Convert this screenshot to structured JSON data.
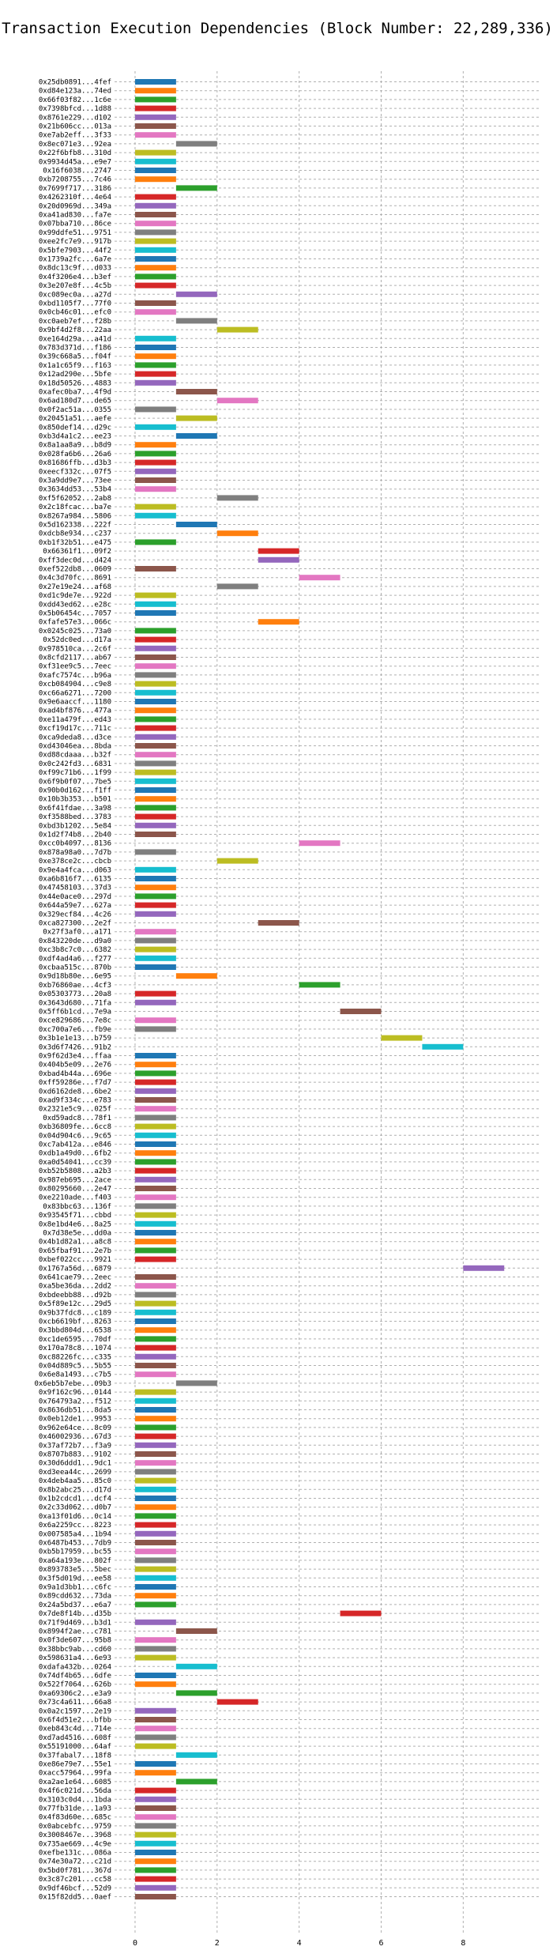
{
  "chart_data": {
    "type": "bar",
    "orientation": "horizontal",
    "title": "Transaction Execution Dependencies (Block Number: 22,289,336)",
    "xlabel": "",
    "ylabel": "",
    "xlim": [
      -0.5,
      9.9
    ],
    "xticks": [
      0,
      2,
      4,
      6,
      8
    ],
    "grid": true,
    "palette": [
      "#1f77b4",
      "#ff7f0e",
      "#2ca02c",
      "#d62728",
      "#9467bd",
      "#8c564b",
      "#e377c2",
      "#7f7f7f",
      "#bcbd22",
      "#17becf"
    ],
    "transactions": [
      {
        "label": "0x25db0891...4fef",
        "start": 0,
        "end": 1
      },
      {
        "label": "0xd84e123a...74ed",
        "start": 0,
        "end": 1
      },
      {
        "label": "0x66f03f82...1c6e",
        "start": 0,
        "end": 1
      },
      {
        "label": "0x7398bfcd...1d88",
        "start": 0,
        "end": 1
      },
      {
        "label": "0x8761e229...d102",
        "start": 0,
        "end": 1
      },
      {
        "label": "0x21b606cc...013a",
        "start": 0,
        "end": 1
      },
      {
        "label": "0xe7ab2eff...3f33",
        "start": 0,
        "end": 1
      },
      {
        "label": "0x8ec071e3...92ea",
        "start": 1,
        "end": 2
      },
      {
        "label": "0x22f6bfb8...310d",
        "start": 0,
        "end": 1
      },
      {
        "label": "0x9934d45a...e9e7",
        "start": 0,
        "end": 1
      },
      {
        "label": "0x16f6038...2747",
        "start": 0,
        "end": 1
      },
      {
        "label": "0xb7208755...7c46",
        "start": 0,
        "end": 1
      },
      {
        "label": "0x7699f717...3186",
        "start": 1,
        "end": 2
      },
      {
        "label": "0x4262310f...4e64",
        "start": 0,
        "end": 1
      },
      {
        "label": "0x20d0969d...349a",
        "start": 0,
        "end": 1
      },
      {
        "label": "0xa41ad830...fa7e",
        "start": 0,
        "end": 1
      },
      {
        "label": "0x07bba710...86ce",
        "start": 0,
        "end": 1
      },
      {
        "label": "0x99ddfe51...9751",
        "start": 0,
        "end": 1
      },
      {
        "label": "0xee2fc7e9...917b",
        "start": 0,
        "end": 1
      },
      {
        "label": "0x5bfe7903...44f2",
        "start": 0,
        "end": 1
      },
      {
        "label": "0x1739a2fc...6a7e",
        "start": 0,
        "end": 1
      },
      {
        "label": "0x8dc13c9f...d033",
        "start": 0,
        "end": 1
      },
      {
        "label": "0x4f3206e4...b3ef",
        "start": 0,
        "end": 1
      },
      {
        "label": "0x3e207e8f...4c5b",
        "start": 0,
        "end": 1
      },
      {
        "label": "0xc089ec0a...a27d",
        "start": 1,
        "end": 2
      },
      {
        "label": "0xbd1105f7...77f0",
        "start": 0,
        "end": 1
      },
      {
        "label": "0x0cb46c01...efc0",
        "start": 0,
        "end": 1
      },
      {
        "label": "0xc0aeb7ef...f28b",
        "start": 1,
        "end": 2
      },
      {
        "label": "0x9bf4d2f8...22aa",
        "start": 2,
        "end": 3
      },
      {
        "label": "0xe164d29a...a41d",
        "start": 0,
        "end": 1
      },
      {
        "label": "0x783d371d...f186",
        "start": 0,
        "end": 1
      },
      {
        "label": "0x39c668a5...f04f",
        "start": 0,
        "end": 1
      },
      {
        "label": "0x1a1c65f9...f163",
        "start": 0,
        "end": 1
      },
      {
        "label": "0x12ad290e...5bfe",
        "start": 0,
        "end": 1
      },
      {
        "label": "0x18d50526...4883",
        "start": 0,
        "end": 1
      },
      {
        "label": "0xafec0ba7...4f9d",
        "start": 1,
        "end": 2
      },
      {
        "label": "0x6ad180d7...de65",
        "start": 2,
        "end": 3
      },
      {
        "label": "0x0f2ac51a...0355",
        "start": 0,
        "end": 1
      },
      {
        "label": "0x20451a51...aefe",
        "start": 1,
        "end": 2
      },
      {
        "label": "0x850def14...d29c",
        "start": 0,
        "end": 1
      },
      {
        "label": "0xb3d4a1c2...ee23",
        "start": 1,
        "end": 2
      },
      {
        "label": "0x8a1aa8a9...b8d9",
        "start": 0,
        "end": 1
      },
      {
        "label": "0x028fa6b6...26a6",
        "start": 0,
        "end": 1
      },
      {
        "label": "0x81686ffb...d3b3",
        "start": 0,
        "end": 1
      },
      {
        "label": "0xeecf332c...07f5",
        "start": 0,
        "end": 1
      },
      {
        "label": "0x3a9dd9e7...73ee",
        "start": 0,
        "end": 1
      },
      {
        "label": "0x3634dd53...53b4",
        "start": 0,
        "end": 1
      },
      {
        "label": "0xf5f62052...2ab8",
        "start": 2,
        "end": 3
      },
      {
        "label": "0x2c18fcac...ba7e",
        "start": 0,
        "end": 1
      },
      {
        "label": "0x8267a984...5806",
        "start": 0,
        "end": 1
      },
      {
        "label": "0x5d162338...222f",
        "start": 1,
        "end": 2
      },
      {
        "label": "0xdcb8e934...c237",
        "start": 2,
        "end": 3
      },
      {
        "label": "0xb1f32b51...e475",
        "start": 0,
        "end": 1
      },
      {
        "label": "0x66361f1...09f2",
        "start": 3,
        "end": 4
      },
      {
        "label": "0xff3dec0d...d424",
        "start": 3,
        "end": 4
      },
      {
        "label": "0xef522db8...0609",
        "start": 0,
        "end": 1
      },
      {
        "label": "0x4c3d70fc...8691",
        "start": 4,
        "end": 5
      },
      {
        "label": "0x27e19e24...af68",
        "start": 2,
        "end": 3
      },
      {
        "label": "0xd1c9de7e...922d",
        "start": 0,
        "end": 1
      },
      {
        "label": "0xdd43ed62...e28c",
        "start": 0,
        "end": 1
      },
      {
        "label": "0x5b06454c...7057",
        "start": 0,
        "end": 1
      },
      {
        "label": "0xfafe57e3...066c",
        "start": 3,
        "end": 4
      },
      {
        "label": "0x0245c025...73a0",
        "start": 0,
        "end": 1
      },
      {
        "label": "0x52dc0ed...d17a",
        "start": 0,
        "end": 1
      },
      {
        "label": "0x978510ca...2c6f",
        "start": 0,
        "end": 1
      },
      {
        "label": "0x8cfd2117...ab67",
        "start": 0,
        "end": 1
      },
      {
        "label": "0xf31ee9c5...7eec",
        "start": 0,
        "end": 1
      },
      {
        "label": "0xafc7574c...b96a",
        "start": 0,
        "end": 1
      },
      {
        "label": "0xcb084904...c9e8",
        "start": 0,
        "end": 1
      },
      {
        "label": "0xc66a6271...7200",
        "start": 0,
        "end": 1
      },
      {
        "label": "0x9e6aaccf...1180",
        "start": 0,
        "end": 1
      },
      {
        "label": "0xad4bf876...477a",
        "start": 0,
        "end": 1
      },
      {
        "label": "0xe11a479f...ed43",
        "start": 0,
        "end": 1
      },
      {
        "label": "0xcf19d17c...711c",
        "start": 0,
        "end": 1
      },
      {
        "label": "0xca9deda8...d3ce",
        "start": 0,
        "end": 1
      },
      {
        "label": "0xd43046ea...8bda",
        "start": 0,
        "end": 1
      },
      {
        "label": "0xd88cdaaa...b32f",
        "start": 0,
        "end": 1
      },
      {
        "label": "0x0c242fd3...6831",
        "start": 0,
        "end": 1
      },
      {
        "label": "0xf99c71b6...1f99",
        "start": 0,
        "end": 1
      },
      {
        "label": "0x6f9b0f07...7be5",
        "start": 0,
        "end": 1
      },
      {
        "label": "0x90b0d162...f1ff",
        "start": 0,
        "end": 1
      },
      {
        "label": "0x10b3b353...b501",
        "start": 0,
        "end": 1
      },
      {
        "label": "0x6f41fdae...3a98",
        "start": 0,
        "end": 1
      },
      {
        "label": "0xf3588bed...3783",
        "start": 0,
        "end": 1
      },
      {
        "label": "0xbd3b1202...5e84",
        "start": 0,
        "end": 1
      },
      {
        "label": "0x1d2f74b8...2b40",
        "start": 0,
        "end": 1
      },
      {
        "label": "0xcc0b4097...8136",
        "start": 4,
        "end": 5
      },
      {
        "label": "0x878a98a0...7d7b",
        "start": 0,
        "end": 1
      },
      {
        "label": "0xe378ce2c...cbcb",
        "start": 2,
        "end": 3
      },
      {
        "label": "0x9e4a4fca...d063",
        "start": 0,
        "end": 1
      },
      {
        "label": "0xa6b816f7...6135",
        "start": 0,
        "end": 1
      },
      {
        "label": "0x47458103...37d3",
        "start": 0,
        "end": 1
      },
      {
        "label": "0x44e0ace0...297d",
        "start": 0,
        "end": 1
      },
      {
        "label": "0x644a59e7...627a",
        "start": 0,
        "end": 1
      },
      {
        "label": "0x329ecf84...4c26",
        "start": 0,
        "end": 1
      },
      {
        "label": "0xca827300...2e2f",
        "start": 3,
        "end": 4
      },
      {
        "label": "0x27f3af0...a171",
        "start": 0,
        "end": 1
      },
      {
        "label": "0x843220de...d9a0",
        "start": 0,
        "end": 1
      },
      {
        "label": "0xc3b8c7c0...6382",
        "start": 0,
        "end": 1
      },
      {
        "label": "0xdf4ad4a6...f277",
        "start": 0,
        "end": 1
      },
      {
        "label": "0xcbaa515c...870b",
        "start": 0,
        "end": 1
      },
      {
        "label": "0x9d18b80e...6e95",
        "start": 1,
        "end": 2
      },
      {
        "label": "0xb76860ae...4cf3",
        "start": 4,
        "end": 5
      },
      {
        "label": "0x05303773...20a8",
        "start": 0,
        "end": 1
      },
      {
        "label": "0x3643d680...71fa",
        "start": 0,
        "end": 1
      },
      {
        "label": "0x5ff6b1cd...7e9a",
        "start": 5,
        "end": 6
      },
      {
        "label": "0xce829686...7e8c",
        "start": 0,
        "end": 1
      },
      {
        "label": "0xc700a7e6...fb9e",
        "start": 0,
        "end": 1
      },
      {
        "label": "0x3b1e1e13...b759",
        "start": 6,
        "end": 7
      },
      {
        "label": "0x3d6f7426...91b2",
        "start": 7,
        "end": 8
      },
      {
        "label": "0x9f62d3e4...ffaa",
        "start": 0,
        "end": 1
      },
      {
        "label": "0x404b5e09...2e76",
        "start": 0,
        "end": 1
      },
      {
        "label": "0xbad4b44a...696e",
        "start": 0,
        "end": 1
      },
      {
        "label": "0xff59286e...f7d7",
        "start": 0,
        "end": 1
      },
      {
        "label": "0xd6162de8...6be2",
        "start": 0,
        "end": 1
      },
      {
        "label": "0xad9f334c...e783",
        "start": 0,
        "end": 1
      },
      {
        "label": "0x2321e5c9...025f",
        "start": 0,
        "end": 1
      },
      {
        "label": "0xd59adc8...78f1",
        "start": 0,
        "end": 1
      },
      {
        "label": "0xb36809fe...6cc8",
        "start": 0,
        "end": 1
      },
      {
        "label": "0x04d904c6...9c65",
        "start": 0,
        "end": 1
      },
      {
        "label": "0xc7ab412a...e846",
        "start": 0,
        "end": 1
      },
      {
        "label": "0xdb1a49d0...6fb2",
        "start": 0,
        "end": 1
      },
      {
        "label": "0xa0d54041...cc39",
        "start": 0,
        "end": 1
      },
      {
        "label": "0xb52b5808...a2b3",
        "start": 0,
        "end": 1
      },
      {
        "label": "0x987eb695...2ace",
        "start": 0,
        "end": 1
      },
      {
        "label": "0x80295660...2e47",
        "start": 0,
        "end": 1
      },
      {
        "label": "0xe2210ade...f403",
        "start": 0,
        "end": 1
      },
      {
        "label": "0x83bbc63...136f",
        "start": 0,
        "end": 1
      },
      {
        "label": "0x93545f71...cbbd",
        "start": 0,
        "end": 1
      },
      {
        "label": "0x8e1bd4e6...8a25",
        "start": 0,
        "end": 1
      },
      {
        "label": "0x7d38e5e...dd0a",
        "start": 0,
        "end": 1
      },
      {
        "label": "0x4b1d82a1...a8c8",
        "start": 0,
        "end": 1
      },
      {
        "label": "0x65fbaf91...2e7b",
        "start": 0,
        "end": 1
      },
      {
        "label": "0xbef022cc...9921",
        "start": 0,
        "end": 1
      },
      {
        "label": "0x1767a56d...6879",
        "start": 8,
        "end": 9
      },
      {
        "label": "0x641cae79...2eec",
        "start": 0,
        "end": 1
      },
      {
        "label": "0xa5be36da...2dd2",
        "start": 0,
        "end": 1
      },
      {
        "label": "0xbdeebb88...d92b",
        "start": 0,
        "end": 1
      },
      {
        "label": "0x5f89e12c...29d5",
        "start": 0,
        "end": 1
      },
      {
        "label": "0x9b37fdc8...c189",
        "start": 0,
        "end": 1
      },
      {
        "label": "0xcb6619bf...8263",
        "start": 0,
        "end": 1
      },
      {
        "label": "0x3bbd804d...6538",
        "start": 0,
        "end": 1
      },
      {
        "label": "0xc1de6595...70df",
        "start": 0,
        "end": 1
      },
      {
        "label": "0x170a78c8...1074",
        "start": 0,
        "end": 1
      },
      {
        "label": "0xc88226fc...c335",
        "start": 0,
        "end": 1
      },
      {
        "label": "0x04d889c5...5b55",
        "start": 0,
        "end": 1
      },
      {
        "label": "0x6e8a1493...c7b5",
        "start": 0,
        "end": 1
      },
      {
        "label": "0x6eb5b7ebe...09b3",
        "start": 1,
        "end": 2
      },
      {
        "label": "0x9f162c96...0144",
        "start": 0,
        "end": 1
      },
      {
        "label": "0x764793a2...f512",
        "start": 0,
        "end": 1
      },
      {
        "label": "0x8636db51...8da5",
        "start": 0,
        "end": 1
      },
      {
        "label": "0x0eb12de1...9953",
        "start": 0,
        "end": 1
      },
      {
        "label": "0x962e64ce...8c09",
        "start": 0,
        "end": 1
      },
      {
        "label": "0x46002936...67d3",
        "start": 0,
        "end": 1
      },
      {
        "label": "0x37af72b7...f3a9",
        "start": 0,
        "end": 1
      },
      {
        "label": "0x8707b883...9102",
        "start": 0,
        "end": 1
      },
      {
        "label": "0x30d6ddd1...9dc1",
        "start": 0,
        "end": 1
      },
      {
        "label": "0xd3eea44c...2699",
        "start": 0,
        "end": 1
      },
      {
        "label": "0x4deb4aa5...85c0",
        "start": 0,
        "end": 1
      },
      {
        "label": "0x8b2abc25...d17d",
        "start": 0,
        "end": 1
      },
      {
        "label": "0x1b2cdcd1...dcf4",
        "start": 0,
        "end": 1
      },
      {
        "label": "0x2c33d062...d0b7",
        "start": 0,
        "end": 1
      },
      {
        "label": "0xa13f01d6...0c14",
        "start": 0,
        "end": 1
      },
      {
        "label": "0x6a2259cc...8223",
        "start": 0,
        "end": 1
      },
      {
        "label": "0x007585a4...1b94",
        "start": 0,
        "end": 1
      },
      {
        "label": "0x6487b453...7db9",
        "start": 0,
        "end": 1
      },
      {
        "label": "0xb5b17959...bc55",
        "start": 0,
        "end": 1
      },
      {
        "label": "0xa64a193e...802f",
        "start": 0,
        "end": 1
      },
      {
        "label": "0x893783e5...5bec",
        "start": 0,
        "end": 1
      },
      {
        "label": "0x3f5d019d...ee58",
        "start": 0,
        "end": 1
      },
      {
        "label": "0x9a1d3bb1...c6fc",
        "start": 0,
        "end": 1
      },
      {
        "label": "0x89cdd632...73da",
        "start": 0,
        "end": 1
      },
      {
        "label": "0x24a5bd37...e6a7",
        "start": 0,
        "end": 1
      },
      {
        "label": "0x7de8f14b...d35b",
        "start": 5,
        "end": 6
      },
      {
        "label": "0x71f9d469...b3d1",
        "start": 0,
        "end": 1
      },
      {
        "label": "0x8994f2ae...c781",
        "start": 1,
        "end": 2
      },
      {
        "label": "0x0f3de607...95b8",
        "start": 0,
        "end": 1
      },
      {
        "label": "0x38bbc9ab...cd60",
        "start": 0,
        "end": 1
      },
      {
        "label": "0x598631a4...6e93",
        "start": 0,
        "end": 1
      },
      {
        "label": "0xdafa432b...0264",
        "start": 1,
        "end": 2
      },
      {
        "label": "0x74df4b65...6dfe",
        "start": 0,
        "end": 1
      },
      {
        "label": "0x522f7064...626b",
        "start": 0,
        "end": 1
      },
      {
        "label": "0xa69306c2...e3a9",
        "start": 1,
        "end": 2
      },
      {
        "label": "0x73c4a611...66a8",
        "start": 2,
        "end": 3
      },
      {
        "label": "0x0a2c1597...2e19",
        "start": 0,
        "end": 1
      },
      {
        "label": "0x6f4d51e2...bfbb",
        "start": 0,
        "end": 1
      },
      {
        "label": "0xeb843c4d...714e",
        "start": 0,
        "end": 1
      },
      {
        "label": "0xd7ad4516...608f",
        "start": 0,
        "end": 1
      },
      {
        "label": "0x55191000...64af",
        "start": 0,
        "end": 1
      },
      {
        "label": "0x37fabal7...18f8",
        "start": 1,
        "end": 2
      },
      {
        "label": "0xe86e79e7...55e1",
        "start": 0,
        "end": 1
      },
      {
        "label": "0xacc57964...99fa",
        "start": 0,
        "end": 1
      },
      {
        "label": "0xa2ae1e64...6085",
        "start": 1,
        "end": 2
      },
      {
        "label": "0x4f6c021d...56da",
        "start": 0,
        "end": 1
      },
      {
        "label": "0x3103c0d4...1bda",
        "start": 0,
        "end": 1
      },
      {
        "label": "0x77fb31de...1a93",
        "start": 0,
        "end": 1
      },
      {
        "label": "0x4f83d60e...685c",
        "start": 0,
        "end": 1
      },
      {
        "label": "0x0abcebfc...9759",
        "start": 0,
        "end": 1
      },
      {
        "label": "0x3008467e...3968",
        "start": 0,
        "end": 1
      },
      {
        "label": "0x735ae669...4c9e",
        "start": 0,
        "end": 1
      },
      {
        "label": "0xefbe131c...086a",
        "start": 0,
        "end": 1
      },
      {
        "label": "0x74e30a72...c21d",
        "start": 0,
        "end": 1
      },
      {
        "label": "0x5bd0f781...367d",
        "start": 0,
        "end": 1
      },
      {
        "label": "0x3c87c201...cc58",
        "start": 0,
        "end": 1
      },
      {
        "label": "0x9df46bcf...52d9",
        "start": 0,
        "end": 1
      },
      {
        "label": "0x15f82dd5...0aef",
        "start": 0,
        "end": 1
      }
    ]
  }
}
